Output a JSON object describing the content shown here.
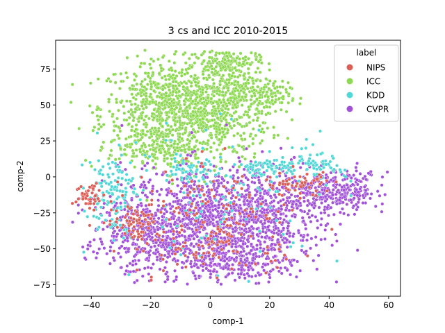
{
  "chart_data": {
    "type": "scatter",
    "title": "3 cs and ICC 2010-2015",
    "xlabel": "comp-1",
    "ylabel": "comp-2",
    "xlim": [
      -52,
      64
    ],
    "ylim": [
      -83,
      95
    ],
    "xticks": [
      -40,
      -20,
      0,
      20,
      40,
      60
    ],
    "yticks": [
      -75,
      -50,
      -25,
      0,
      25,
      50,
      75
    ],
    "grid": false,
    "legend": {
      "title": "label",
      "placement": "top-right",
      "entries": [
        "NIPS",
        "ICC",
        "KDD",
        "CVPR"
      ]
    },
    "series": [
      {
        "name": "ICC",
        "color": "#8ed854",
        "points_approx": 1700,
        "clusters": [
          {
            "cx": -15,
            "cy": 48,
            "sx": 11,
            "sy": 16,
            "n": 620
          },
          {
            "cx": 0,
            "cy": 45,
            "sx": 10,
            "sy": 17,
            "n": 560
          },
          {
            "cx": 10,
            "cy": 58,
            "sx": 6,
            "sy": 9,
            "n": 160
          },
          {
            "cx": 6,
            "cy": 80,
            "sx": 5,
            "sy": 4,
            "n": 130
          },
          {
            "cx": 19,
            "cy": 56,
            "sx": 4,
            "sy": 5,
            "n": 70
          },
          {
            "cx": -22,
            "cy": 22,
            "sx": 6,
            "sy": 7,
            "n": 100
          },
          {
            "cx": -12,
            "cy": 15,
            "sx": 4,
            "sy": 6,
            "n": 60
          }
        ]
      },
      {
        "name": "CVPR",
        "color": "#a252d9",
        "points_approx": 2200,
        "clusters": [
          {
            "cx": 0,
            "cy": -32,
            "sx": 15,
            "sy": 19,
            "n": 1200
          },
          {
            "cx": 42,
            "cy": -10,
            "sx": 9,
            "sy": 7,
            "n": 320
          },
          {
            "cx": -24,
            "cy": -42,
            "sx": 9,
            "sy": 14,
            "n": 260
          },
          {
            "cx": 22,
            "cy": -22,
            "sx": 9,
            "sy": 16,
            "n": 260
          },
          {
            "cx": 10,
            "cy": -60,
            "sx": 9,
            "sy": 6,
            "n": 160
          }
        ]
      },
      {
        "name": "KDD",
        "color": "#52d7d7",
        "points_approx": 430,
        "clusters": [
          {
            "cx": -33,
            "cy": -12,
            "sx": 4,
            "sy": 14,
            "n": 130
          },
          {
            "cx": 20,
            "cy": 7,
            "sx": 6,
            "sy": 3,
            "n": 70
          },
          {
            "cx": 35,
            "cy": 6,
            "sx": 5,
            "sy": 5,
            "n": 60
          },
          {
            "cx": -8,
            "cy": 5,
            "sx": 4,
            "sy": 3,
            "n": 40
          },
          {
            "cx": 5,
            "cy": -10,
            "sx": 20,
            "sy": 24,
            "n": 130
          }
        ]
      },
      {
        "name": "NIPS",
        "color": "#db5f57",
        "points_approx": 360,
        "clusters": [
          {
            "cx": -40,
            "cy": -13,
            "sx": 2.5,
            "sy": 5,
            "n": 45
          },
          {
            "cx": -25,
            "cy": -30,
            "sx": 4,
            "sy": 6,
            "n": 60
          },
          {
            "cx": 0,
            "cy": -35,
            "sx": 15,
            "sy": 20,
            "n": 200
          },
          {
            "cx": 30,
            "cy": -5,
            "sx": 6,
            "sy": 4,
            "n": 55
          }
        ]
      }
    ]
  }
}
